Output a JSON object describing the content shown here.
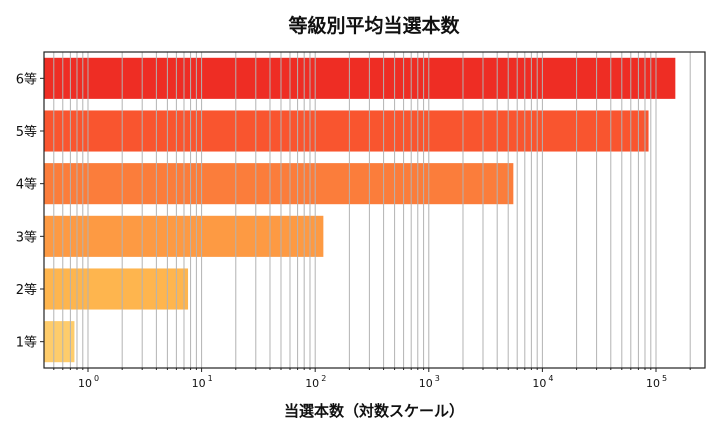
{
  "chart_data": {
    "type": "bar",
    "orientation": "horizontal",
    "title": "等級別平均当選本数",
    "xlabel": "当選本数（対数スケール）",
    "ylabel": "",
    "xscale": "log",
    "xlim": [
      0.41,
      270000
    ],
    "grid": "x-major-and-minor",
    "legend": null,
    "categories": [
      "1等",
      "2等",
      "3等",
      "4等",
      "5等",
      "6等"
    ],
    "values": [
      0.76,
      7.6,
      118,
      5550,
      86000,
      148000
    ],
    "colors": [
      "#FECC6B",
      "#FEB54E",
      "#FD9A43",
      "#FB7D3B",
      "#F9552F",
      "#EE2D24"
    ],
    "xticks": [
      {
        "base": "10",
        "exp": "0",
        "value": 1
      },
      {
        "base": "10",
        "exp": "1",
        "value": 10
      },
      {
        "base": "10",
        "exp": "2",
        "value": 100
      },
      {
        "base": "10",
        "exp": "3",
        "value": 1000
      },
      {
        "base": "10",
        "exp": "4",
        "value": 10000
      },
      {
        "base": "10",
        "exp": "5",
        "value": 100000
      }
    ]
  }
}
